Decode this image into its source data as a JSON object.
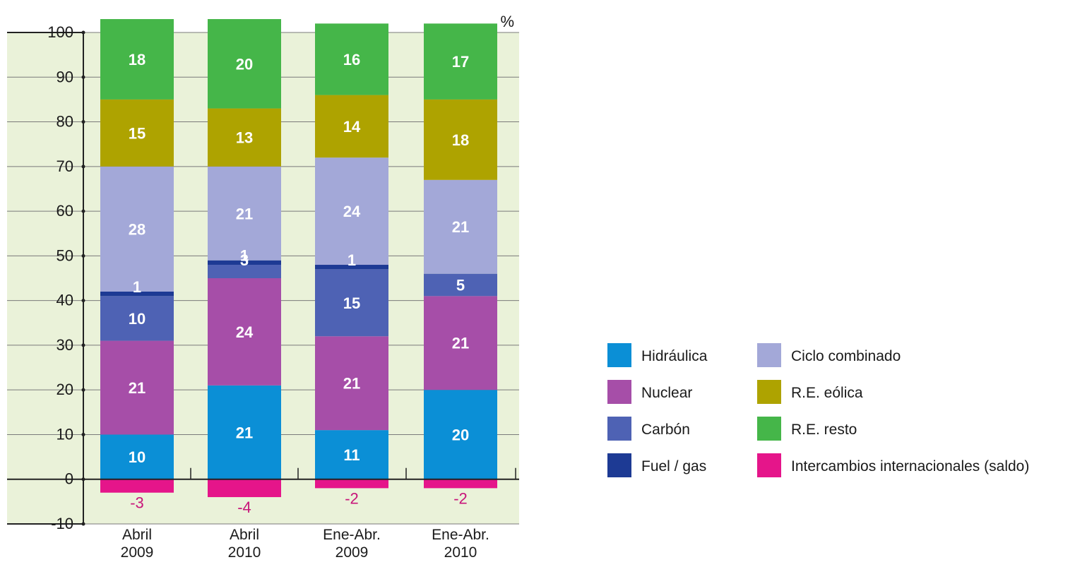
{
  "chart_data": {
    "type": "bar",
    "stacked": true,
    "unit": "%",
    "ylim": [
      -10,
      100
    ],
    "yticks": [
      100,
      90,
      80,
      70,
      60,
      50,
      40,
      30,
      20,
      10,
      0,
      -10
    ],
    "grid": true,
    "legend_position": "right",
    "categories": [
      [
        "Abril",
        "2009"
      ],
      [
        "Abril",
        "2010"
      ],
      [
        "Ene-Abr.",
        "2009"
      ],
      [
        "Ene-Abr.",
        "2010"
      ]
    ],
    "series": [
      {
        "name": "Hidráulica",
        "color": "#0b8fd6",
        "values": [
          10,
          21,
          11,
          20
        ]
      },
      {
        "name": "Nuclear",
        "color": "#a64ea8",
        "values": [
          21,
          24,
          21,
          21
        ]
      },
      {
        "name": "Carbón",
        "color": "#4e62b4",
        "values": [
          10,
          3,
          15,
          5
        ]
      },
      {
        "name": "Fuel / gas",
        "color": "#1d3a94",
        "values": [
          1,
          1,
          1,
          null
        ]
      },
      {
        "name": "Ciclo combinado",
        "color": "#a3a8d8",
        "values": [
          28,
          21,
          24,
          21
        ]
      },
      {
        "name": "R.E. eólica",
        "color": "#aea300",
        "values": [
          15,
          13,
          14,
          18
        ]
      },
      {
        "name": "R.E. resto",
        "color": "#45b649",
        "values": [
          18,
          20,
          16,
          17
        ]
      },
      {
        "name": "Intercambios internacionales (saldo)",
        "color": "#e5158a",
        "values": [
          -3,
          -4,
          -2,
          -2
        ]
      }
    ],
    "legend_columns": [
      [
        "Hidráulica",
        "Nuclear",
        "Carbón",
        "Fuel / gas"
      ],
      [
        "Ciclo combinado",
        "R.E. eólica",
        "R.E. resto",
        "Intercambios internacionales (saldo)"
      ]
    ],
    "plot_background": "#eaf2d9"
  }
}
